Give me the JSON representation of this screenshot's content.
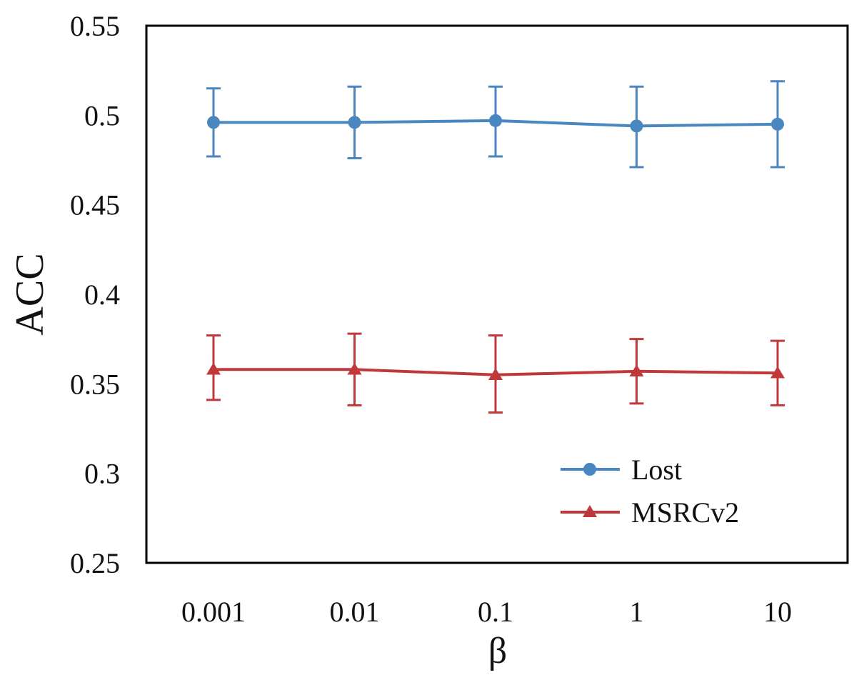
{
  "chart_data": {
    "type": "line",
    "title": "",
    "xlabel": "β",
    "ylabel": "ACC",
    "categories": [
      "0.001",
      "0.01",
      "0.1",
      "1",
      "10"
    ],
    "ylim": [
      0.25,
      0.55
    ],
    "yticks": [
      "0.25",
      "0.3",
      "0.35",
      "0.4",
      "0.45",
      "0.5",
      "0.55"
    ],
    "grid": false,
    "legend_position": "bottom-right",
    "series": [
      {
        "name": "Lost",
        "color": "#4a86bf",
        "marker": "circle",
        "values": [
          0.496,
          0.496,
          0.497,
          0.494,
          0.495
        ],
        "error_low": [
          0.477,
          0.476,
          0.477,
          0.471,
          0.471
        ],
        "error_high": [
          0.515,
          0.516,
          0.516,
          0.516,
          0.519
        ]
      },
      {
        "name": "MSRCv2",
        "color": "#c0383a",
        "marker": "triangle",
        "values": [
          0.358,
          0.358,
          0.355,
          0.357,
          0.356
        ],
        "error_low": [
          0.341,
          0.338,
          0.334,
          0.339,
          0.338
        ],
        "error_high": [
          0.377,
          0.378,
          0.377,
          0.375,
          0.374
        ]
      }
    ]
  }
}
